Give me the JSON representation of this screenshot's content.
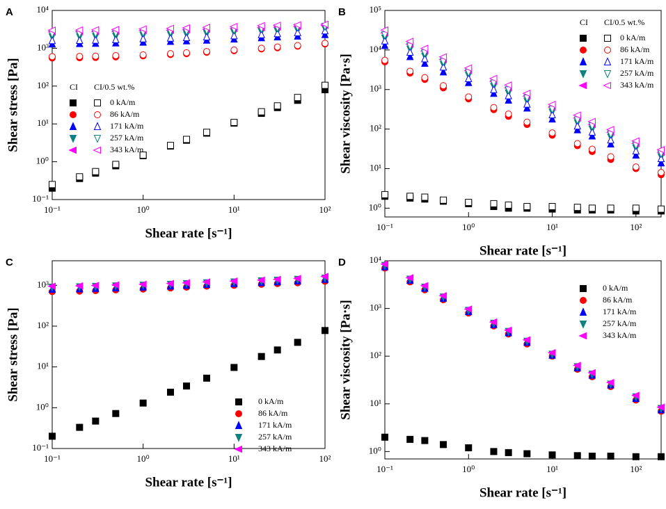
{
  "chart_data": [
    {
      "type": "scatter",
      "panel": "A",
      "xlabel": "Shear rate [s⁻¹]",
      "ylabel": "Shear stress [Pa]",
      "xscale": "log",
      "yscale": "log",
      "xlim": [
        0.1,
        100
      ],
      "ylim": [
        0.1,
        10000
      ],
      "xticks": [
        {
          "value": 0.1,
          "label": "10⁻¹"
        },
        {
          "value": 1,
          "label": "10⁰"
        },
        {
          "value": 10,
          "label": "10¹"
        },
        {
          "value": 100,
          "label": "10²"
        }
      ],
      "yticks": [
        {
          "value": 0.1,
          "label": "10⁻¹"
        },
        {
          "value": 1,
          "label": "10⁰"
        },
        {
          "value": 10,
          "label": "10¹"
        },
        {
          "value": 100,
          "label": "10²"
        },
        {
          "value": 1000,
          "label": "10³"
        },
        {
          "value": 10000,
          "label": "10⁴"
        }
      ],
      "legend": "center-left",
      "x": [
        0.1,
        0.2,
        0.3,
        0.5,
        1,
        2,
        3,
        5,
        10,
        20,
        30,
        50,
        100
      ],
      "labels": [
        "0 kA/m",
        "86 kA/m",
        "171 kA/m",
        "257 kA/m",
        "343 kA/m"
      ],
      "groups": [
        {
          "name": "CI",
          "filled": true,
          "series": [
            {
              "color": "#000000",
              "marker": "square",
              "values": [
                0.2,
                0.36,
                0.5,
                0.78,
                1.45,
                2.6,
                3.7,
                5.7,
                10.5,
                19,
                27,
                42,
                80
              ]
            },
            {
              "color": "#ff0000",
              "marker": "circle",
              "values": [
                550,
                560,
                570,
                590,
                630,
                680,
                720,
                780,
                860,
                960,
                1030,
                1130,
                1300
              ]
            },
            {
              "color": "#0000ff",
              "marker": "triangle-up",
              "values": [
                1300,
                1330,
                1350,
                1380,
                1450,
                1520,
                1570,
                1640,
                1750,
                1900,
                2000,
                2100,
                2300
              ]
            },
            {
              "color": "#0f8080",
              "marker": "triangle-down",
              "values": [
                2000,
                2030,
                2060,
                2100,
                2200,
                2300,
                2350,
                2450,
                2600,
                2750,
                2850,
                3000,
                3300
              ]
            },
            {
              "color": "#ff00ff",
              "marker": "triangle-left",
              "values": [
                2700,
                2730,
                2760,
                2800,
                2900,
                3000,
                3080,
                3180,
                3350,
                3500,
                3620,
                3780,
                4000
              ]
            }
          ]
        },
        {
          "name": "CI/0.5 wt.%",
          "filled": false,
          "series": [
            {
              "color": "#000000",
              "marker": "square",
              "values": [
                0.25,
                0.4,
                0.55,
                0.85,
                1.5,
                2.7,
                3.9,
                6,
                11,
                21,
                30,
                50,
                105
              ]
            },
            {
              "color": "#ff0000",
              "marker": "circle",
              "values": [
                600,
                610,
                620,
                640,
                670,
                720,
                760,
                820,
                900,
                1000,
                1080,
                1180,
                1350
              ]
            },
            {
              "color": "#0000ff",
              "marker": "triangle-up",
              "values": [
                1600,
                1620,
                1650,
                1700,
                1780,
                1860,
                1920,
                2000,
                2150,
                2300,
                2450,
                2600,
                2900
              ]
            },
            {
              "color": "#0f8080",
              "marker": "triangle-down",
              "values": [
                2400,
                2430,
                2460,
                2520,
                2620,
                2750,
                2830,
                2950,
                3100,
                3300,
                3450,
                3600,
                3800
              ]
            },
            {
              "color": "#ff00ff",
              "marker": "triangle-left",
              "values": [
                3000,
                3030,
                3070,
                3120,
                3230,
                3350,
                3450,
                3580,
                3750,
                3950,
                4050,
                4150,
                4300
              ]
            }
          ]
        }
      ]
    },
    {
      "type": "scatter",
      "panel": "B",
      "xlabel": "Shear rate [s⁻¹]",
      "ylabel": "Shear viscosity [Pa·s]",
      "xscale": "log",
      "yscale": "log",
      "xlim": [
        0.1,
        200
      ],
      "ylim": [
        0.6,
        100000
      ],
      "xticks": [
        {
          "value": 0.1,
          "label": "10⁻¹"
        },
        {
          "value": 1,
          "label": "10⁰"
        },
        {
          "value": 10,
          "label": "10¹"
        },
        {
          "value": 100,
          "label": "10²"
        }
      ],
      "yticks": [
        {
          "value": 1,
          "label": "10⁰"
        },
        {
          "value": 10,
          "label": "10¹"
        },
        {
          "value": 100,
          "label": "10²"
        },
        {
          "value": 1000,
          "label": "10³"
        },
        {
          "value": 10000,
          "label": "10⁴"
        },
        {
          "value": 100000,
          "label": "10⁵"
        }
      ],
      "legend": "upper-right",
      "x": [
        0.1,
        0.2,
        0.3,
        0.5,
        1,
        2,
        3,
        5,
        10,
        20,
        30,
        50,
        100,
        200
      ],
      "labels": [
        "0 kA/m",
        "86 kA/m",
        "171 kA/m",
        "257 kA/m",
        "343 kA/m"
      ],
      "groups": [
        {
          "name": "CI",
          "filled": true,
          "series": [
            {
              "color": "#000000",
              "marker": "square",
              "values": [
                2,
                1.8,
                1.7,
                1.5,
                1.3,
                1.1,
                1.0,
                1.0,
                0.95,
                0.9,
                0.9,
                0.9,
                0.85,
                0.85
              ]
            },
            {
              "color": "#ff0000",
              "marker": "circle",
              "values": [
                5000,
                2600,
                1800,
                1100,
                580,
                310,
                210,
                130,
                70,
                38,
                27,
                17,
                10,
                7
              ]
            },
            {
              "color": "#0000ff",
              "marker": "triangle-up",
              "values": [
                13000,
                6800,
                4600,
                2800,
                1500,
                800,
                540,
                340,
                180,
                96,
                67,
                42,
                22,
                14
              ]
            },
            {
              "color": "#0f8080",
              "marker": "triangle-down",
              "values": [
                20000,
                10500,
                7000,
                4300,
                2300,
                1200,
                820,
                510,
                270,
                145,
                100,
                63,
                33,
                20
              ]
            },
            {
              "color": "#ff00ff",
              "marker": "triangle-left",
              "values": [
                27000,
                14000,
                9400,
                5700,
                3000,
                1600,
                1100,
                680,
                360,
                190,
                130,
                83,
                43,
                26
              ]
            }
          ]
        },
        {
          "name": "CI/0.5 wt.%",
          "filled": false,
          "series": [
            {
              "color": "#000000",
              "marker": "square",
              "values": [
                2.2,
                2,
                1.9,
                1.6,
                1.4,
                1.3,
                1.2,
                1.1,
                1.1,
                1.05,
                1.0,
                1.0,
                1.0,
                0.95
              ]
            },
            {
              "color": "#ff0000",
              "marker": "circle",
              "values": [
                5500,
                2900,
                2000,
                1250,
                650,
                350,
                240,
                150,
                80,
                43,
                31,
                20,
                11,
                8
              ]
            },
            {
              "color": "#0000ff",
              "marker": "triangle-up",
              "values": [
                17000,
                8800,
                6000,
                3700,
                1900,
                1000,
                700,
                430,
                230,
                120,
                84,
                53,
                28,
                18
              ]
            },
            {
              "color": "#0f8080",
              "marker": "triangle-down",
              "values": [
                24000,
                12500,
                8400,
                5100,
                2700,
                1450,
                980,
                610,
                320,
                170,
                120,
                75,
                39,
                24
              ]
            },
            {
              "color": "#ff00ff",
              "marker": "triangle-left",
              "values": [
                32000,
                16500,
                11000,
                6700,
                3500,
                1900,
                1300,
                800,
                420,
                225,
                155,
                97,
                50,
                30
              ]
            }
          ]
        }
      ]
    },
    {
      "type": "scatter",
      "panel": "C",
      "xlabel": "Shear rate [s⁻¹]",
      "ylabel": "Shear stress [Pa]",
      "xscale": "log",
      "yscale": "log",
      "xlim": [
        0.1,
        100
      ],
      "ylim": [
        0.1,
        4000
      ],
      "xticks": [
        {
          "value": 0.1,
          "label": "10⁻¹"
        },
        {
          "value": 1,
          "label": "10⁰"
        },
        {
          "value": 10,
          "label": "10¹"
        },
        {
          "value": 100,
          "label": "10²"
        }
      ],
      "yticks": [
        {
          "value": 0.1,
          "label": "10⁻¹"
        },
        {
          "value": 1,
          "label": "10⁰"
        },
        {
          "value": 10,
          "label": "10¹"
        },
        {
          "value": 100,
          "label": "10²"
        },
        {
          "value": 1000,
          "label": "10³"
        }
      ],
      "legend": "lower-right",
      "filled": true,
      "x": [
        0.1,
        0.2,
        0.3,
        0.5,
        1,
        2,
        3,
        5,
        10,
        20,
        30,
        50,
        100
      ],
      "series": [
        {
          "name": "0 kA/m",
          "color": "#000000",
          "marker": "square",
          "values": [
            0.2,
            0.33,
            0.47,
            0.72,
            1.3,
            2.4,
            3.4,
            5.3,
            9.7,
            18,
            26,
            40,
            78
          ]
        },
        {
          "name": "86 kA/m",
          "color": "#ff0000",
          "marker": "circle",
          "values": [
            700,
            720,
            740,
            770,
            810,
            860,
            900,
            950,
            1000,
            1060,
            1100,
            1150,
            1250
          ]
        },
        {
          "name": "171 kA/m",
          "color": "#0000ff",
          "marker": "triangle-up",
          "values": [
            800,
            820,
            840,
            870,
            910,
            960,
            1000,
            1050,
            1100,
            1170,
            1220,
            1280,
            1400
          ]
        },
        {
          "name": "257 kA/m",
          "color": "#0f8080",
          "marker": "triangle-down",
          "values": [
            900,
            920,
            940,
            970,
            1010,
            1060,
            1100,
            1150,
            1210,
            1280,
            1330,
            1400,
            1500
          ]
        },
        {
          "name": "343 kA/m",
          "color": "#ff00ff",
          "marker": "triangle-left",
          "values": [
            950,
            970,
            990,
            1020,
            1060,
            1110,
            1150,
            1210,
            1270,
            1340,
            1400,
            1470,
            1650
          ]
        }
      ]
    },
    {
      "type": "scatter",
      "panel": "D",
      "xlabel": "Shear rate [s⁻¹]",
      "ylabel": "Shear viscosity [Pa·s]",
      "xscale": "log",
      "yscale": "log",
      "xlim": [
        0.1,
        200
      ],
      "ylim": [
        0.7,
        10000
      ],
      "xticks": [
        {
          "value": 0.1,
          "label": "10⁻¹"
        },
        {
          "value": 1,
          "label": "10⁰"
        },
        {
          "value": 10,
          "label": "10¹"
        },
        {
          "value": 100,
          "label": "10²"
        }
      ],
      "yticks": [
        {
          "value": 1,
          "label": "10⁰"
        },
        {
          "value": 10,
          "label": "10¹"
        },
        {
          "value": 100,
          "label": "10²"
        },
        {
          "value": 1000,
          "label": "10³"
        },
        {
          "value": 10000,
          "label": "10⁴"
        }
      ],
      "legend": "upper-right",
      "filled": true,
      "x": [
        0.1,
        0.2,
        0.3,
        0.5,
        1,
        2,
        3,
        5,
        10,
        20,
        30,
        50,
        100,
        200
      ],
      "series": [
        {
          "name": "0 kA/m",
          "color": "#000000",
          "marker": "square",
          "values": [
            2,
            1.8,
            1.7,
            1.4,
            1.2,
            1.0,
            0.95,
            0.9,
            0.85,
            0.82,
            0.8,
            0.8,
            0.78,
            0.78
          ]
        },
        {
          "name": "86 kA/m",
          "color": "#ff0000",
          "marker": "circle",
          "values": [
            7000,
            3600,
            2450,
            1520,
            800,
            430,
            290,
            180,
            100,
            53,
            37,
            23,
            12,
            7
          ]
        },
        {
          "name": "171 kA/m",
          "color": "#0000ff",
          "marker": "triangle-up",
          "values": [
            7500,
            3900,
            2650,
            1640,
            860,
            460,
            310,
            195,
            105,
            57,
            40,
            25,
            13,
            7.5
          ]
        },
        {
          "name": "257 kA/m",
          "color": "#0f8080",
          "marker": "triangle-down",
          "values": [
            8000,
            4100,
            2800,
            1740,
            910,
            490,
            330,
            205,
            110,
            60,
            42,
            26,
            14,
            8
          ]
        },
        {
          "name": "343 kA/m",
          "color": "#ff00ff",
          "marker": "triangle-left",
          "values": [
            8500,
            4400,
            3000,
            1850,
            970,
            520,
            350,
            220,
            118,
            64,
            45,
            28,
            15,
            8.5
          ]
        }
      ]
    }
  ]
}
